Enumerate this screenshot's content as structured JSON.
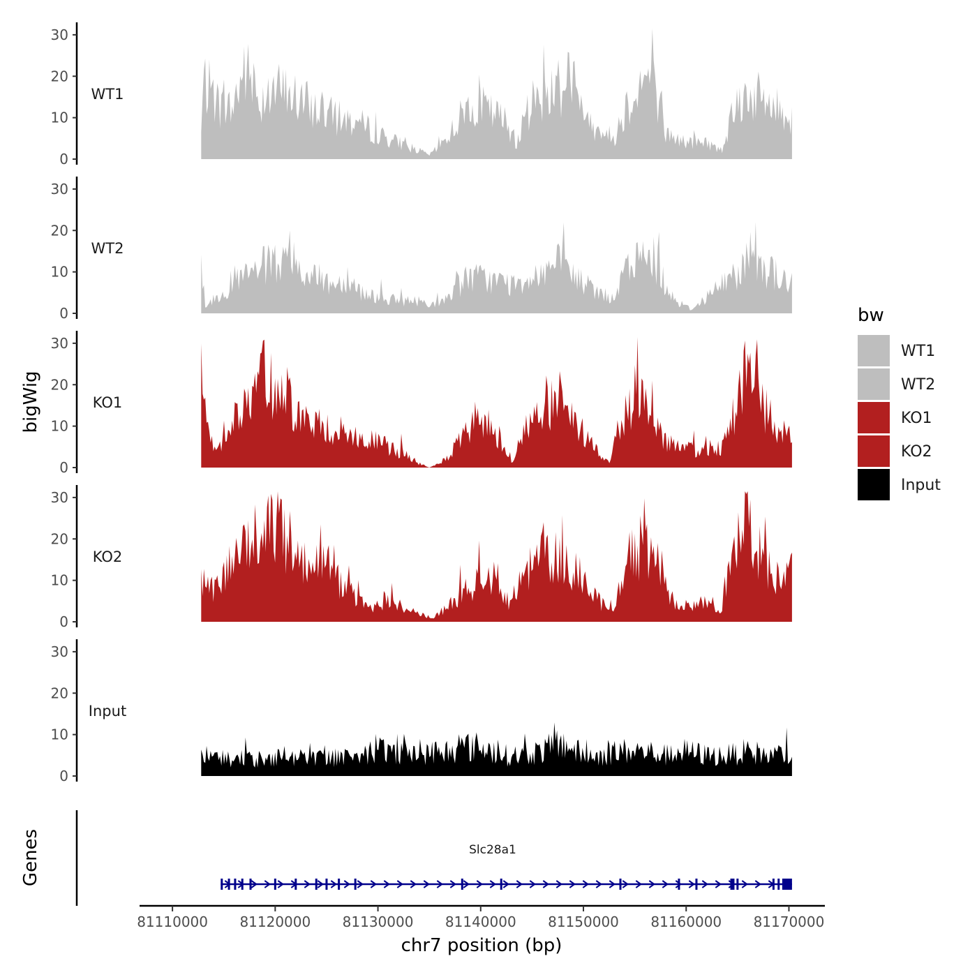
{
  "chart_data": {
    "type": "area",
    "ylabel": "bigWig",
    "xlabel": "chr7 position (bp)",
    "xlim": [
      81106800,
      81173500
    ],
    "ylim": [
      0,
      32
    ],
    "yticks": [
      0,
      10,
      20,
      30
    ],
    "xticks": [
      81110000,
      81120000,
      81130000,
      81140000,
      81150000,
      81160000,
      81170000
    ],
    "xtick_labels": [
      "81110000",
      "81120000",
      "81130000",
      "81140000",
      "81150000",
      "81160000",
      "81170000"
    ],
    "track_range": [
      81112800,
      81170300
    ],
    "legend": {
      "title": "bw",
      "entries": [
        {
          "label": "WT1",
          "color": "#bebebe"
        },
        {
          "label": "WT2",
          "color": "#bebebe"
        },
        {
          "label": "KO1",
          "color": "#b21f1f"
        },
        {
          "label": "KO2",
          "color": "#b21f1f"
        },
        {
          "label": "Input",
          "color": "#000000"
        }
      ]
    },
    "series": [
      {
        "name": "WT1",
        "color": "#bebebe",
        "anchors": [
          [
            81112800,
            6
          ],
          [
            81113000,
            19
          ],
          [
            81114500,
            13
          ],
          [
            81115800,
            12
          ],
          [
            81117000,
            22
          ],
          [
            81118500,
            14
          ],
          [
            81119500,
            17
          ],
          [
            81121000,
            16
          ],
          [
            81122500,
            14
          ],
          [
            81124000,
            12
          ],
          [
            81126000,
            10
          ],
          [
            81128000,
            9
          ],
          [
            81130000,
            6
          ],
          [
            81132000,
            4
          ],
          [
            81134000,
            2
          ],
          [
            81135000,
            1
          ],
          [
            81136000,
            3
          ],
          [
            81137500,
            8
          ],
          [
            81139000,
            14
          ],
          [
            81140500,
            12
          ],
          [
            81142500,
            9
          ],
          [
            81143500,
            4
          ],
          [
            81145000,
            14
          ],
          [
            81146500,
            16
          ],
          [
            81148000,
            18
          ],
          [
            81148700,
            23
          ],
          [
            81149500,
            12
          ],
          [
            81151000,
            8
          ],
          [
            81153000,
            5
          ],
          [
            81154000,
            12
          ],
          [
            81155500,
            18
          ],
          [
            81156500,
            20
          ],
          [
            81157500,
            14
          ],
          [
            81158000,
            6
          ],
          [
            81160000,
            4
          ],
          [
            81162000,
            4
          ],
          [
            81163500,
            2
          ],
          [
            81164500,
            12
          ],
          [
            81166000,
            16
          ],
          [
            81167500,
            14
          ],
          [
            81169000,
            12
          ],
          [
            81170300,
            10
          ]
        ]
      },
      {
        "name": "WT2",
        "color": "#bebebe",
        "anchors": [
          [
            81112800,
            12
          ],
          [
            81113200,
            2
          ],
          [
            81114500,
            4
          ],
          [
            81116000,
            8
          ],
          [
            81117500,
            9
          ],
          [
            81118500,
            11
          ],
          [
            81120000,
            12
          ],
          [
            81121500,
            11
          ],
          [
            81123000,
            10
          ],
          [
            81124500,
            8
          ],
          [
            81126000,
            7
          ],
          [
            81127000,
            9
          ],
          [
            81128500,
            5
          ],
          [
            81130000,
            4
          ],
          [
            81132000,
            3
          ],
          [
            81134000,
            3
          ],
          [
            81136000,
            2
          ],
          [
            81137500,
            6
          ],
          [
            81139000,
            9
          ],
          [
            81141000,
            8
          ],
          [
            81143000,
            7
          ],
          [
            81145000,
            9
          ],
          [
            81146500,
            11
          ],
          [
            81148000,
            12
          ],
          [
            81149500,
            8
          ],
          [
            81151000,
            6
          ],
          [
            81153000,
            3
          ],
          [
            81154000,
            10
          ],
          [
            81155500,
            13
          ],
          [
            81156800,
            14
          ],
          [
            81157800,
            8
          ],
          [
            81159000,
            3
          ],
          [
            81160500,
            1
          ],
          [
            81162000,
            4
          ],
          [
            81164000,
            8
          ],
          [
            81165500,
            11
          ],
          [
            81166500,
            16
          ],
          [
            81167500,
            11
          ],
          [
            81169000,
            9
          ],
          [
            81170300,
            7
          ]
        ]
      },
      {
        "name": "KO1",
        "color": "#b21f1f",
        "anchors": [
          [
            81112800,
            21
          ],
          [
            81113500,
            8
          ],
          [
            81114300,
            4
          ],
          [
            81115500,
            12
          ],
          [
            81117000,
            14
          ],
          [
            81118200,
            18
          ],
          [
            81118800,
            26
          ],
          [
            81119500,
            20
          ],
          [
            81121000,
            19
          ],
          [
            81122500,
            12
          ],
          [
            81124000,
            10
          ],
          [
            81126000,
            9
          ],
          [
            81128000,
            7
          ],
          [
            81130000,
            6
          ],
          [
            81132000,
            4
          ],
          [
            81134000,
            1
          ],
          [
            81135000,
            0
          ],
          [
            81136000,
            1
          ],
          [
            81137000,
            3
          ],
          [
            81138500,
            8
          ],
          [
            81140000,
            11
          ],
          [
            81141500,
            9
          ],
          [
            81142500,
            4
          ],
          [
            81143000,
            1
          ],
          [
            81144500,
            10
          ],
          [
            81146000,
            14
          ],
          [
            81147500,
            15
          ],
          [
            81149500,
            10
          ],
          [
            81151000,
            5
          ],
          [
            81152500,
            1
          ],
          [
            81153500,
            10
          ],
          [
            81155000,
            18
          ],
          [
            81156500,
            17
          ],
          [
            81157500,
            8
          ],
          [
            81159000,
            5
          ],
          [
            81161000,
            4
          ],
          [
            81163500,
            5
          ],
          [
            81164500,
            12
          ],
          [
            81165500,
            21
          ],
          [
            81166500,
            26
          ],
          [
            81167500,
            15
          ],
          [
            81169000,
            7
          ],
          [
            81170300,
            10
          ]
        ]
      },
      {
        "name": "KO2",
        "color": "#b21f1f",
        "anchors": [
          [
            81112800,
            11
          ],
          [
            81114000,
            7
          ],
          [
            81115500,
            13
          ],
          [
            81117000,
            18
          ],
          [
            81118500,
            22
          ],
          [
            81119500,
            24
          ],
          [
            81121000,
            20
          ],
          [
            81122500,
            16
          ],
          [
            81124500,
            14
          ],
          [
            81126000,
            10
          ],
          [
            81127800,
            6
          ],
          [
            81129000,
            3
          ],
          [
            81130500,
            5
          ],
          [
            81132000,
            4
          ],
          [
            81134000,
            2
          ],
          [
            81135500,
            1
          ],
          [
            81137000,
            4
          ],
          [
            81138500,
            8
          ],
          [
            81140000,
            10
          ],
          [
            81141500,
            12
          ],
          [
            81142800,
            4
          ],
          [
            81144500,
            12
          ],
          [
            81146000,
            17
          ],
          [
            81147500,
            15
          ],
          [
            81149500,
            13
          ],
          [
            81151000,
            6
          ],
          [
            81153000,
            2
          ],
          [
            81154000,
            14
          ],
          [
            81155500,
            18
          ],
          [
            81157000,
            17
          ],
          [
            81158500,
            6
          ],
          [
            81160000,
            3
          ],
          [
            81162000,
            5
          ],
          [
            81163500,
            3
          ],
          [
            81164500,
            22
          ],
          [
            81165500,
            23
          ],
          [
            81166500,
            21
          ],
          [
            81167500,
            14
          ],
          [
            81169000,
            10
          ],
          [
            81170300,
            12
          ]
        ]
      },
      {
        "name": "Input",
        "color": "#000000",
        "anchors": [
          [
            81112800,
            5
          ],
          [
            81115000,
            4
          ],
          [
            81118000,
            4
          ],
          [
            81121000,
            5
          ],
          [
            81124000,
            4
          ],
          [
            81127000,
            5
          ],
          [
            81130000,
            6
          ],
          [
            81132000,
            6
          ],
          [
            81134000,
            5
          ],
          [
            81135500,
            6
          ],
          [
            81137000,
            6
          ],
          [
            81138500,
            7
          ],
          [
            81140000,
            7
          ],
          [
            81142500,
            5
          ],
          [
            81144000,
            5
          ],
          [
            81146000,
            6
          ],
          [
            81148000,
            8
          ],
          [
            81150000,
            5
          ],
          [
            81152000,
            5
          ],
          [
            81154000,
            6
          ],
          [
            81156000,
            6
          ],
          [
            81158000,
            5
          ],
          [
            81160000,
            6
          ],
          [
            81162000,
            5
          ],
          [
            81164000,
            5
          ],
          [
            81166000,
            6
          ],
          [
            81168000,
            5
          ],
          [
            81170300,
            5
          ]
        ]
      }
    ],
    "gene_track": {
      "title": "Genes",
      "gene_name": "Slc28a1",
      "color": "#00008b",
      "start": 81114700,
      "end": 81170300,
      "strand": "+",
      "exons": [
        81114800,
        81115500,
        81116100,
        81116800,
        81117600,
        81120000,
        81122000,
        81124000,
        81125000,
        81126200,
        81127800,
        81138200,
        81142000,
        81153600,
        81159300,
        81161000,
        81164400,
        81164600,
        81165000,
        81168500,
        81169000,
        81169500,
        81170000
      ]
    }
  }
}
